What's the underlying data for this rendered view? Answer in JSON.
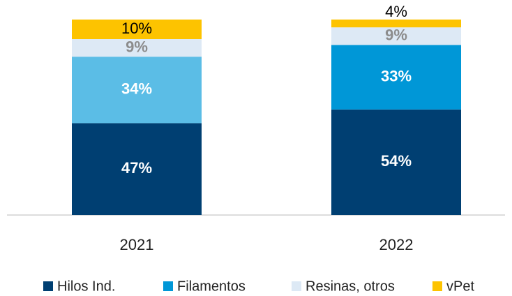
{
  "chart_data": {
    "type": "stacked_bar",
    "categories": [
      "2021",
      "2022"
    ],
    "series": [
      {
        "name": "Hilos Ind.",
        "color": "#003f72",
        "label_color": "#ffffff",
        "values": [
          47,
          54
        ],
        "value_labels": [
          "47%",
          "54%"
        ]
      },
      {
        "name": "Filamentos",
        "color": "#0097d7",
        "point_colors": [
          "#5bbde6",
          "#0097d7"
        ],
        "label_color": "#ffffff",
        "values": [
          34,
          33
        ],
        "value_labels": [
          "34%",
          "33%"
        ]
      },
      {
        "name": "Resinas, otros",
        "color": "#dde9f5",
        "label_color": "#8c8c8c",
        "values": [
          9,
          9
        ],
        "value_labels": [
          "9%",
          "9%"
        ]
      },
      {
        "name": "vPet",
        "color": "#fdc300",
        "label_color": "#000000",
        "values": [
          10,
          4
        ],
        "value_labels": [
          "10%",
          "4%"
        ]
      }
    ],
    "ylim": [
      0,
      100
    ]
  }
}
